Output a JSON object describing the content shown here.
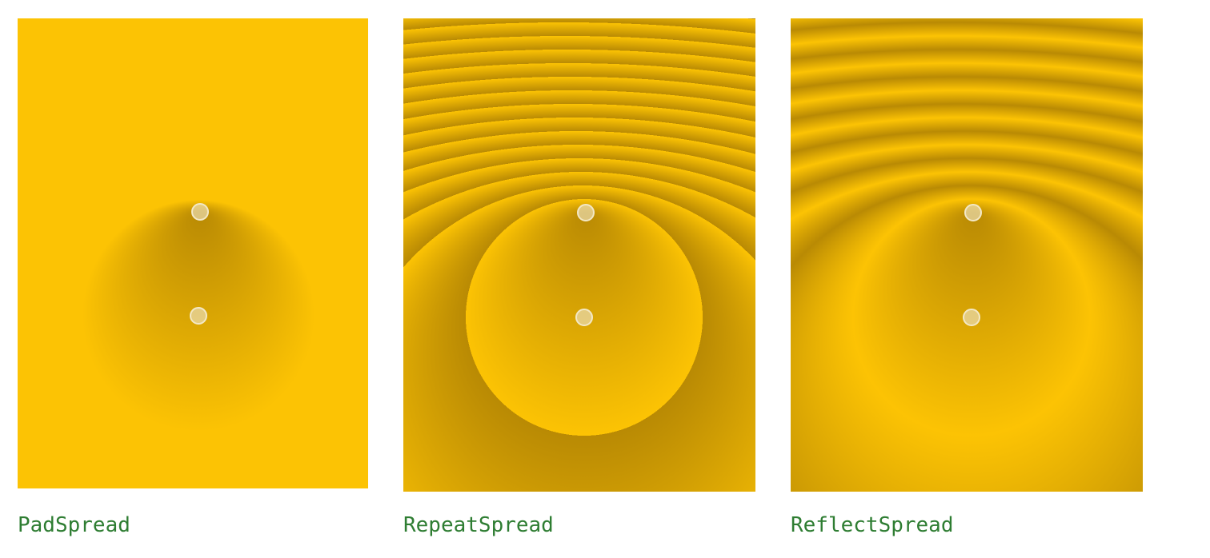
{
  "panels": [
    {
      "id": "pad",
      "label": "PadSpread",
      "spread": "pad"
    },
    {
      "id": "repeat",
      "label": "RepeatSpread",
      "spread": "repeat"
    },
    {
      "id": "reflect",
      "label": "ReflectSpread",
      "spread": "reflect"
    }
  ],
  "colors": {
    "gradient_outer": "#fcc304",
    "gradient_center": "#b98a04",
    "handle_fill": "#e8d8a8",
    "handle_stroke": "#f3e8c6",
    "label": "#2e7d32",
    "background": "#ffffff"
  }
}
